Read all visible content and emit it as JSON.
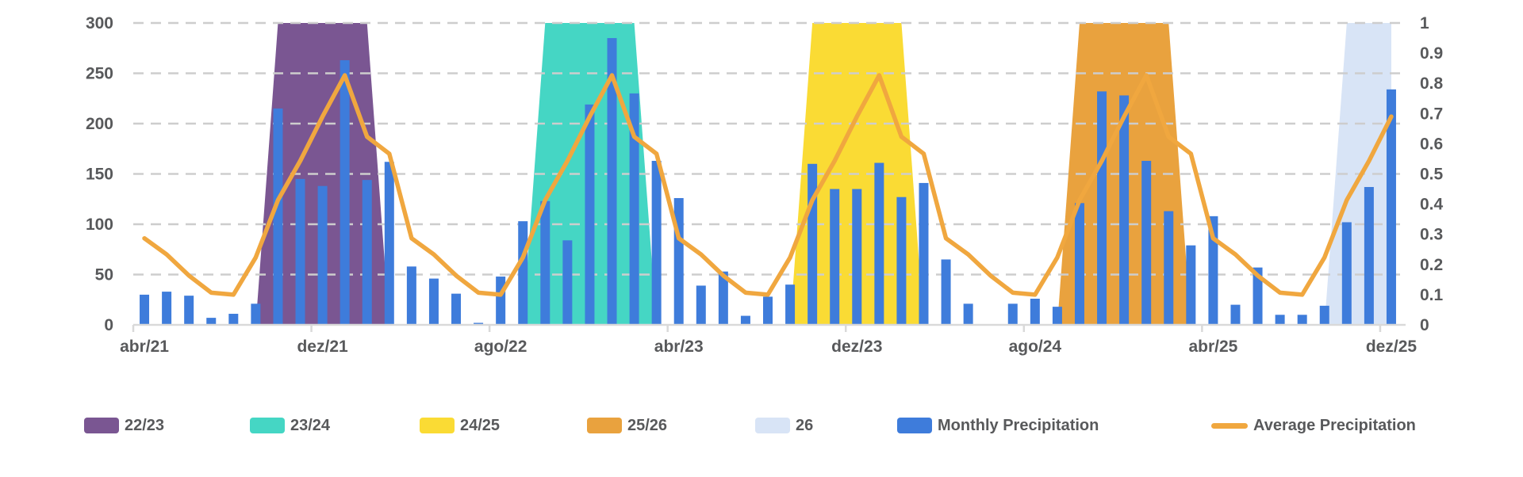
{
  "colors": {
    "bar_blue": "#3E7CDB",
    "line_orange": "#F0A73F",
    "grid": "#CDCDCD",
    "axis_line": "#D9D9D9",
    "text": "#58595B",
    "background": "#FFFFFF"
  },
  "chart_data": {
    "type": "bar",
    "title": "",
    "xlabel": "",
    "ylabel_left": "",
    "ylabel_right": "",
    "grid": true,
    "legend_position": "bottom",
    "months": [
      "abr/21",
      "mai/21",
      "jun/21",
      "jul/21",
      "ago/21",
      "set/21",
      "out/21",
      "nov/21",
      "dez/21",
      "jan/22",
      "fev/22",
      "mar/22",
      "abr/22",
      "mai/22",
      "jun/22",
      "jul/22",
      "ago/22",
      "set/22",
      "out/22",
      "nov/22",
      "dez/22",
      "jan/23",
      "fev/23",
      "mar/23",
      "abr/23",
      "mai/23",
      "jun/23",
      "jul/23",
      "ago/23",
      "set/23",
      "out/23",
      "nov/23",
      "dez/23",
      "jan/24",
      "fev/24",
      "mar/24",
      "abr/24",
      "mai/24",
      "jun/24",
      "jul/24",
      "ago/24",
      "set/24",
      "out/24",
      "nov/24",
      "dez/24",
      "jan/25",
      "fev/25",
      "mar/25",
      "abr/25",
      "mai/25",
      "jun/25",
      "jul/25",
      "ago/25",
      "set/25",
      "out/25",
      "nov/25",
      "dez/25"
    ],
    "series": [
      {
        "name": "Monthly Precipitation",
        "type": "bar",
        "axis": "left",
        "values": [
          30,
          33,
          29,
          7,
          11,
          21,
          215,
          145,
          138,
          263,
          144,
          162,
          58,
          46,
          31,
          2,
          48,
          103,
          123,
          84,
          219,
          285,
          230,
          163,
          126,
          39,
          53,
          9,
          28,
          40,
          160,
          135,
          135,
          161,
          127,
          141,
          65,
          21,
          0,
          21,
          26,
          18,
          121,
          232,
          228,
          163,
          113,
          79,
          108,
          20,
          57,
          10,
          10,
          19,
          102,
          137,
          234
        ]
      },
      {
        "name": "Average Precipitation",
        "type": "line",
        "axis": "left",
        "values": [
          86,
          70,
          49,
          32,
          30,
          67,
          124,
          163,
          207,
          248,
          187,
          170,
          86,
          70,
          49,
          32,
          30,
          67,
          124,
          163,
          207,
          248,
          187,
          170,
          86,
          70,
          49,
          32,
          30,
          67,
          124,
          163,
          207,
          248,
          187,
          170,
          86,
          70,
          49,
          32,
          30,
          67,
          124,
          163,
          207,
          248,
          187,
          170,
          86,
          70,
          49,
          32,
          30,
          67,
          124,
          163,
          207
        ]
      }
    ],
    "bands": [
      {
        "label": "22/23",
        "color": "#7A5692",
        "points": [
          [
            5,
            0
          ],
          [
            6,
            1
          ],
          [
            10,
            1
          ],
          [
            11,
            0
          ]
        ]
      },
      {
        "label": "23/24",
        "color": "#45D6C4",
        "points": [
          [
            17,
            0
          ],
          [
            18,
            1
          ],
          [
            22,
            1
          ],
          [
            23,
            0
          ]
        ]
      },
      {
        "label": "24/25",
        "color": "#FADB34",
        "points": [
          [
            29,
            0
          ],
          [
            30,
            1
          ],
          [
            34,
            1
          ],
          [
            35,
            0
          ]
        ]
      },
      {
        "label": "25/26",
        "color": "#E9A23E",
        "points": [
          [
            41,
            0
          ],
          [
            42,
            1
          ],
          [
            46,
            1
          ],
          [
            47,
            0
          ]
        ]
      },
      {
        "label": "26",
        "color": "#D8E4F6",
        "points": [
          [
            53,
            0
          ],
          [
            54,
            1
          ],
          [
            56,
            1
          ],
          [
            56,
            0
          ]
        ]
      }
    ],
    "y_left": {
      "min": 0,
      "max": 300,
      "ticks": [
        0,
        50,
        100,
        150,
        200,
        250,
        300
      ]
    },
    "y_right": {
      "min": 0,
      "max": 1,
      "ticks": [
        0,
        0.1,
        0.2,
        0.3,
        0.4,
        0.5,
        0.6,
        0.7,
        0.8,
        0.9,
        1
      ]
    },
    "x_ticks": {
      "month_indices": [
        0,
        8,
        16,
        24,
        32,
        40,
        48,
        56
      ],
      "labels": [
        "abr/21",
        "dez/21",
        "ago/22",
        "abr/23",
        "dez/23",
        "ago/24",
        "abr/25",
        "dez/25"
      ]
    }
  },
  "legend": {
    "items": [
      {
        "label": "22/23",
        "color": "#7A5692",
        "kind": "box"
      },
      {
        "label": "23/24",
        "color": "#45D6C4",
        "kind": "box"
      },
      {
        "label": "24/25",
        "color": "#FADB34",
        "kind": "box"
      },
      {
        "label": "25/26",
        "color": "#E9A23E",
        "kind": "box"
      },
      {
        "label": "26",
        "color": "#D8E4F6",
        "kind": "box"
      },
      {
        "label": "Monthly Precipitation",
        "color": "#3E7CDB",
        "kind": "box"
      },
      {
        "label": "Average Precipitation",
        "color": "#F0A73F",
        "kind": "line"
      }
    ]
  }
}
